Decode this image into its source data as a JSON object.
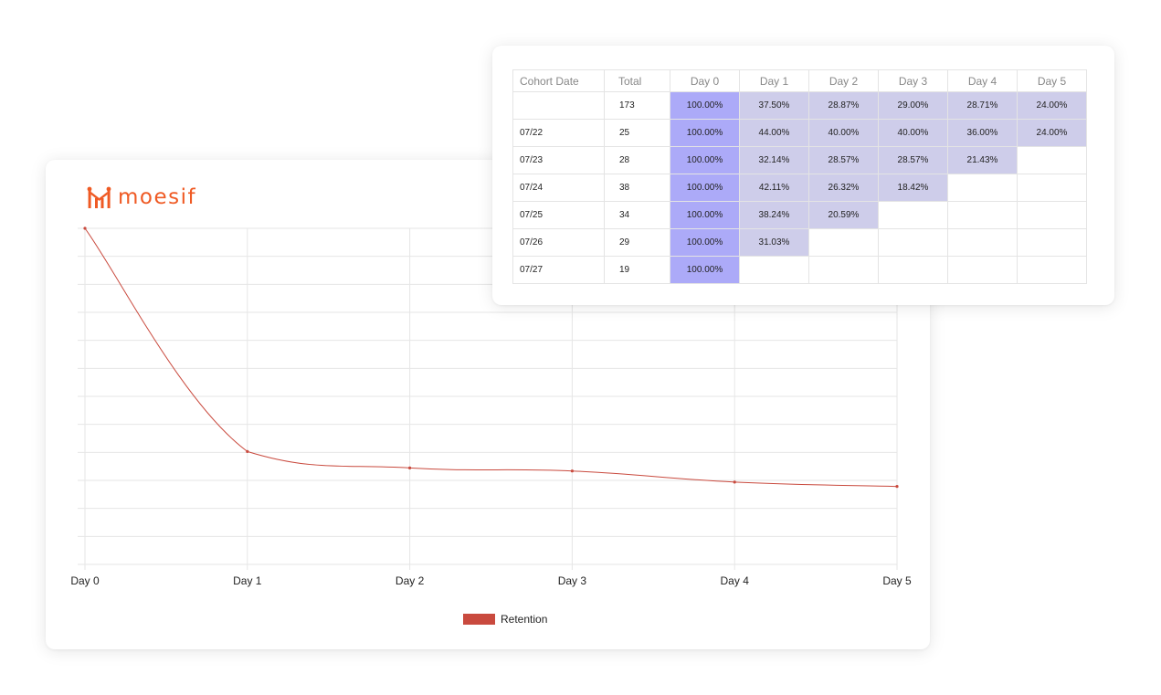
{
  "brand": {
    "name": "moesif",
    "color": "#ef5a24"
  },
  "colors": {
    "line": "#c94a3e",
    "day0_cell": "#acaaf8",
    "retention_cell": "#cecdea",
    "grid": "#e6e6e6"
  },
  "chart_data": {
    "type": "line",
    "title": "",
    "xlabel": "",
    "ylabel": "",
    "categories": [
      "Day 0",
      "Day 1",
      "Day 2",
      "Day 3",
      "Day 4",
      "Day 5"
    ],
    "series": [
      {
        "name": "Retention",
        "values": [
          100,
          33.6,
          28.7,
          27.8,
          24.5,
          23.2
        ]
      }
    ],
    "ylim": [
      0,
      100
    ],
    "grid": true,
    "y_tick_labels_shown": false,
    "legend": "bottom-center"
  },
  "legend": {
    "label": "Retention"
  },
  "cohort_table": {
    "headers": [
      "Cohort Date",
      "Total",
      "Day 0",
      "Day 1",
      "Day 2",
      "Day 3",
      "Day 4",
      "Day 5"
    ],
    "rows": [
      {
        "date": "",
        "total": "173",
        "values": [
          "100.00%",
          "37.50%",
          "28.87%",
          "29.00%",
          "28.71%",
          "24.00%"
        ]
      },
      {
        "date": "07/22",
        "total": "25",
        "values": [
          "100.00%",
          "44.00%",
          "40.00%",
          "40.00%",
          "36.00%",
          "24.00%"
        ]
      },
      {
        "date": "07/23",
        "total": "28",
        "values": [
          "100.00%",
          "32.14%",
          "28.57%",
          "28.57%",
          "21.43%"
        ]
      },
      {
        "date": "07/24",
        "total": "38",
        "values": [
          "100.00%",
          "42.11%",
          "26.32%",
          "18.42%"
        ]
      },
      {
        "date": "07/25",
        "total": "34",
        "values": [
          "100.00%",
          "38.24%",
          "20.59%"
        ]
      },
      {
        "date": "07/26",
        "total": "29",
        "values": [
          "100.00%",
          "31.03%"
        ]
      },
      {
        "date": "07/27",
        "total": "19",
        "values": [
          "100.00%"
        ]
      }
    ]
  }
}
